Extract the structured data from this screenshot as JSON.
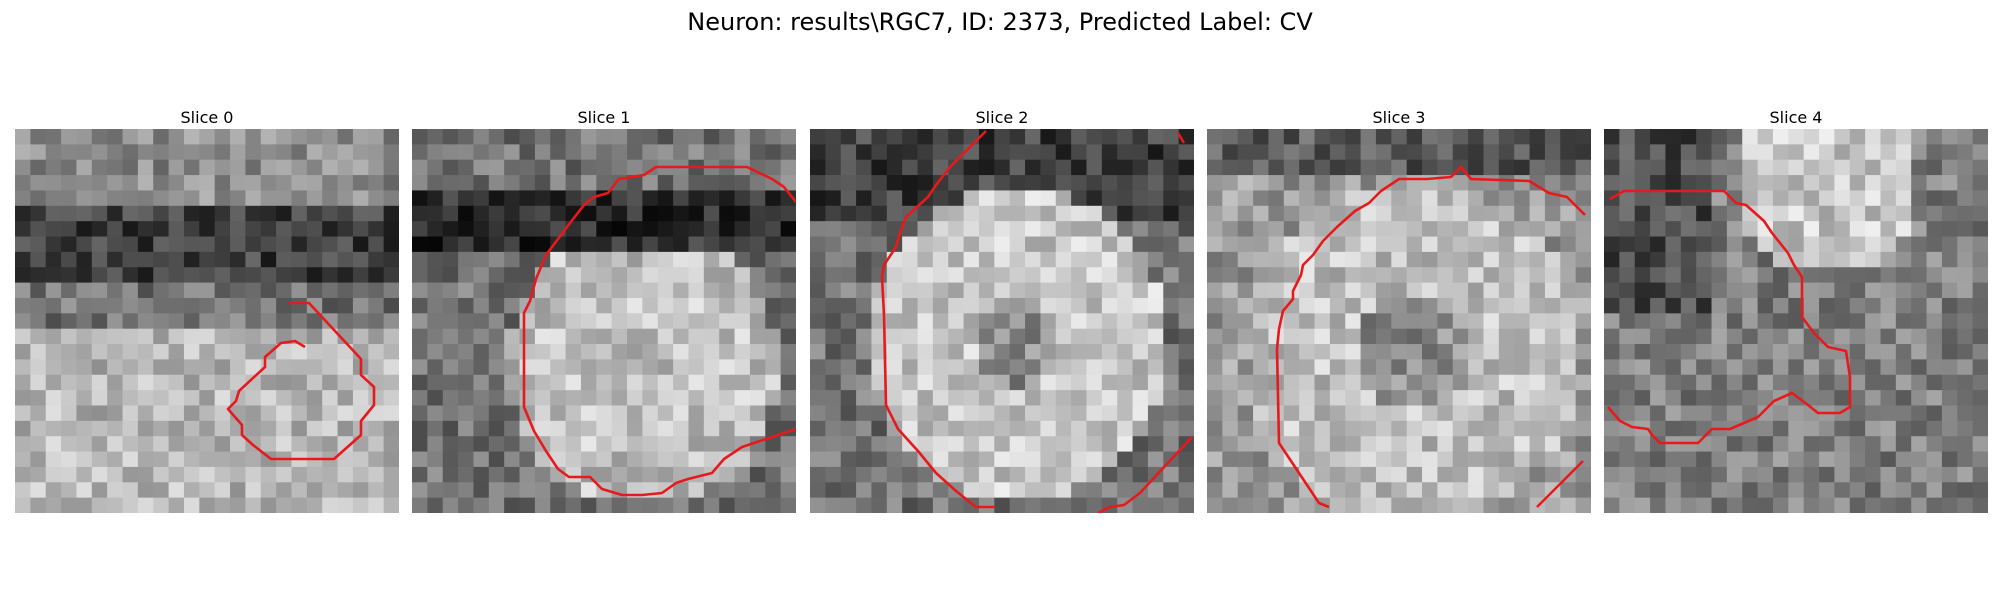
{
  "figure": {
    "title": "Neuron: results\\RGC7, ID: 2373, Predicted Label: CV"
  },
  "panels": [
    {
      "title": "Slice 0"
    },
    {
      "title": "Slice 1"
    },
    {
      "title": "Slice 2"
    },
    {
      "title": "Slice 3"
    },
    {
      "title": "Slice 4"
    }
  ],
  "colors": {
    "contour": "#e8191c",
    "colormap": "gray"
  }
}
